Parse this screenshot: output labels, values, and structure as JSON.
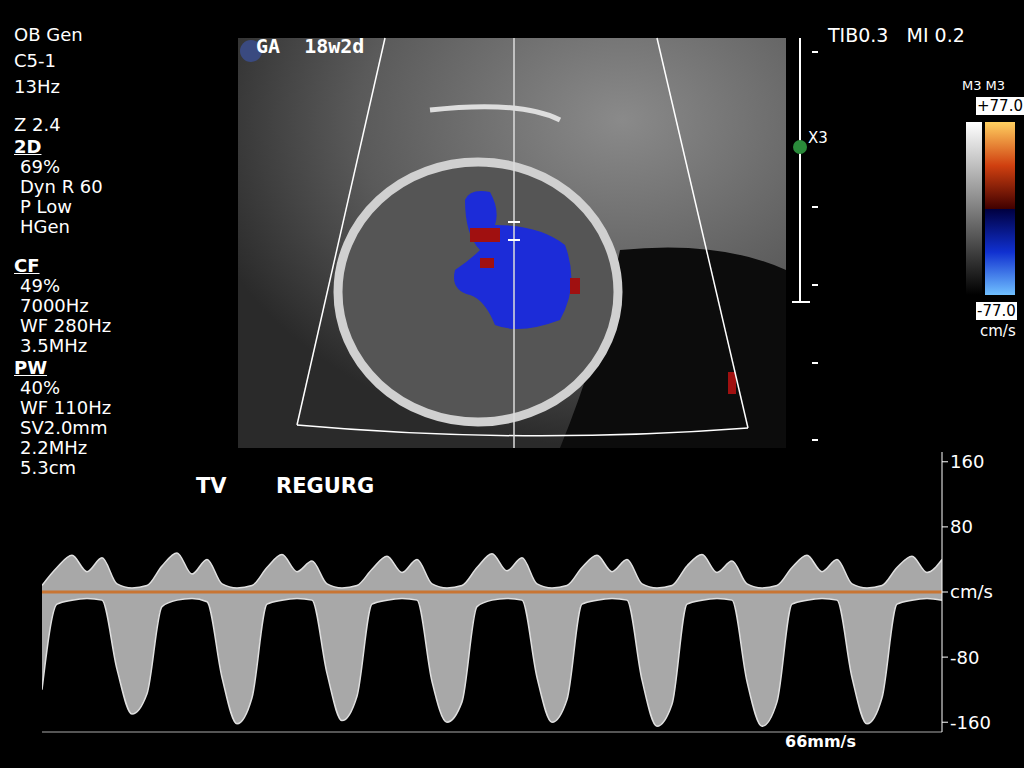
{
  "settings_panel": [
    {
      "lines": [
        "OB Gen",
        "C5-1",
        "13Hz"
      ]
    },
    {
      "lines": [
        "Z 2.4"
      ]
    },
    {
      "heading": "2D",
      "lines": [
        "69%",
        "Dyn R 60",
        "P Low",
        "HGen"
      ]
    },
    {
      "heading": "CF",
      "lines": [
        "49%",
        "7000Hz",
        "WF 280Hz",
        "3.5MHz"
      ]
    },
    {
      "heading": "PW",
      "lines": [
        "40%",
        "WF 110Hz",
        "SV2.0mm",
        "2.2MHz",
        "5.3cm"
      ]
    }
  ],
  "header": {
    "gestational_age": "GA  18w2d",
    "indices": "TIB0.3   MI 0.2"
  },
  "color_bar": {
    "title": "M3 M3",
    "max_label": "+77.0",
    "min_label": "-77.0",
    "unit": "cm/s"
  },
  "depth_marker": "X3",
  "chart_data": {
    "type": "area",
    "annotations": [
      "TV",
      "REGURG"
    ],
    "sweep_speed": "66mm/s",
    "x": [
      0,
      1,
      2,
      3,
      4,
      5,
      6,
      7,
      8,
      9,
      10,
      11,
      12,
      13,
      14,
      15,
      16,
      17,
      18,
      19,
      20,
      21,
      22,
      23,
      24,
      25,
      26,
      27,
      28,
      29,
      30,
      31,
      32,
      33,
      34,
      35,
      36,
      37,
      38,
      39,
      40,
      41,
      42,
      43,
      44,
      45,
      46,
      47,
      48,
      49,
      50,
      51,
      52,
      53,
      54,
      55,
      56,
      57,
      58,
      59,
      60
    ],
    "xlim": [
      0,
      60
    ],
    "series": [
      {
        "color": "#e0e0e0",
        "values": [
          -120,
          -15,
          -10,
          -8,
          -10,
          -95,
          -150,
          -125,
          -18,
          -10,
          -8,
          -12,
          -105,
          -162,
          -130,
          -15,
          -10,
          -8,
          -10,
          -100,
          -158,
          -128,
          -15,
          -10,
          -8,
          -10,
          -110,
          -160,
          -135,
          -18,
          -10,
          -8,
          -10,
          -105,
          -160,
          -132,
          -15,
          -10,
          -8,
          -10,
          -108,
          -165,
          -138,
          -15,
          -10,
          -8,
          -10,
          -110,
          -165,
          -135,
          -15,
          -10,
          -8,
          -10,
          -105,
          -162,
          -130,
          -15,
          -10,
          -8,
          -10
        ]
      },
      {
        "color": "#e0e0e0",
        "values": [
          8,
          30,
          45,
          25,
          42,
          10,
          5,
          8,
          32,
          48,
          22,
          40,
          10,
          5,
          8,
          30,
          46,
          25,
          38,
          10,
          5,
          8,
          28,
          44,
          24,
          40,
          10,
          5,
          8,
          30,
          47,
          26,
          42,
          10,
          5,
          8,
          30,
          45,
          25,
          40,
          10,
          5,
          8,
          32,
          46,
          24,
          38,
          10,
          5,
          8,
          30,
          45,
          25,
          40,
          10,
          5,
          8,
          30,
          44,
          24,
          40
        ]
      }
    ],
    "ylim": [
      -172,
      172
    ],
    "yticks": [
      160,
      80,
      {
        "value": 0,
        "label": "cm/s"
      },
      -80,
      -160
    ],
    "baseline_color": "#c87533",
    "tick_labels": "y"
  }
}
